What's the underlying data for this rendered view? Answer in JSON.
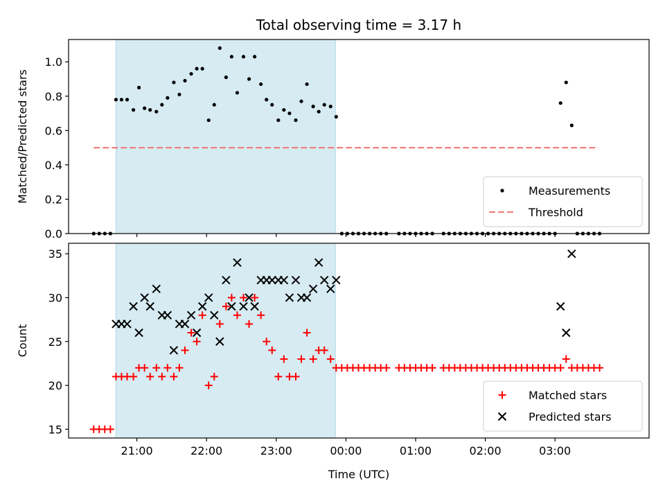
{
  "chart_data": {
    "title": "Total observing time = 3.17 h",
    "xlabel": "Time (UTC)",
    "x_unit": "hours relative to 00:00 UTC",
    "xlim": [
      -3.98,
      4.35
    ],
    "xticks": [
      {
        "value": -3,
        "label": "21:00"
      },
      {
        "value": -2,
        "label": "22:00"
      },
      {
        "value": -1,
        "label": "23:00"
      },
      {
        "value": 0,
        "label": "00:00"
      },
      {
        "value": 1,
        "label": "01:00"
      },
      {
        "value": 2,
        "label": "02:00"
      },
      {
        "value": 3,
        "label": "03:00"
      }
    ],
    "shaded_interval": [
      -3.3,
      -0.15
    ],
    "shade_color": "#add8e6",
    "panels": [
      {
        "type": "scatter",
        "ylabel": "Matched/Predicted stars",
        "ylim": [
          0,
          1.13
        ],
        "yticks": [
          "0.0",
          "0.2",
          "0.4",
          "0.6",
          "0.8",
          "1.0"
        ],
        "legend": "lower right",
        "threshold": {
          "name": "Threshold",
          "y": 0.5,
          "x": [
            -3.62,
            3.62
          ],
          "color": "#f08080"
        },
        "series": [
          {
            "name": "Measurements",
            "color": "#000000",
            "marker": "dot",
            "x": [
              -3.62,
              -3.54,
              -3.46,
              -3.38,
              -3.3,
              -3.22,
              -3.14,
              -3.05,
              -2.97,
              -2.89,
              -2.81,
              -2.72,
              -2.64,
              -2.56,
              -2.47,
              -2.39,
              -2.31,
              -2.22,
              -2.14,
              -2.06,
              -1.97,
              -1.89,
              -1.81,
              -1.72,
              -1.64,
              -1.56,
              -1.47,
              -1.39,
              -1.31,
              -1.22,
              -1.14,
              -1.06,
              -0.97,
              -0.89,
              -0.81,
              -0.72,
              -0.64,
              -0.56,
              -0.47,
              -0.39,
              -0.31,
              -0.22,
              -0.14,
              -0.06,
              0.02,
              0.1,
              0.18,
              0.26,
              0.34,
              0.42,
              0.5,
              0.58,
              0.76,
              0.84,
              0.92,
              1.0,
              1.08,
              1.16,
              1.24,
              1.4,
              1.48,
              1.56,
              1.64,
              1.72,
              1.8,
              1.88,
              1.96,
              2.04,
              2.12,
              2.2,
              2.28,
              2.36,
              2.44,
              2.52,
              2.6,
              2.68,
              2.76,
              2.84,
              2.92,
              3.0,
              3.08,
              3.16,
              3.24,
              3.32,
              3.4,
              3.48,
              3.56,
              3.64
            ],
            "y": [
              0,
              0,
              0,
              0,
              0.78,
              0.78,
              0.78,
              0.72,
              0.85,
              0.73,
              0.72,
              0.71,
              0.75,
              0.79,
              0.88,
              0.81,
              0.89,
              0.93,
              0.96,
              0.96,
              0.66,
              0.75,
              1.08,
              0.91,
              1.03,
              0.82,
              1.03,
              0.9,
              1.03,
              0.87,
              0.78,
              0.75,
              0.66,
              0.72,
              0.7,
              0.66,
              0.77,
              0.87,
              0.74,
              0.71,
              0.75,
              0.74,
              0.68,
              0,
              0,
              0,
              0,
              0,
              0,
              0,
              0,
              0,
              0,
              0,
              0,
              0,
              0,
              0,
              0,
              0,
              0,
              0,
              0,
              0,
              0,
              0,
              0,
              0,
              0,
              0,
              0,
              0,
              0,
              0,
              0,
              0,
              0,
              0,
              0,
              0,
              0.76,
              0.88,
              0.63,
              0,
              0,
              0,
              0,
              0
            ]
          }
        ]
      },
      {
        "type": "scatter",
        "ylabel": "Count",
        "ylim": [
          14,
          36.2
        ],
        "yticks": [
          "15",
          "20",
          "25",
          "30",
          "35"
        ],
        "legend": "lower right",
        "series": [
          {
            "name": "Matched stars",
            "color": "#ff0000",
            "marker": "plus",
            "x": [
              -3.62,
              -3.54,
              -3.46,
              -3.38,
              -3.3,
              -3.22,
              -3.14,
              -3.05,
              -2.97,
              -2.89,
              -2.81,
              -2.72,
              -2.64,
              -2.56,
              -2.47,
              -2.39,
              -2.31,
              -2.22,
              -2.14,
              -2.06,
              -1.97,
              -1.89,
              -1.81,
              -1.72,
              -1.64,
              -1.56,
              -1.47,
              -1.39,
              -1.31,
              -1.22,
              -1.14,
              -1.06,
              -0.97,
              -0.89,
              -0.81,
              -0.72,
              -0.64,
              -0.56,
              -0.47,
              -0.39,
              -0.31,
              -0.22,
              -0.14,
              -0.06,
              0.02,
              0.1,
              0.18,
              0.26,
              0.34,
              0.42,
              0.5,
              0.58,
              0.76,
              0.84,
              0.92,
              1.0,
              1.08,
              1.16,
              1.24,
              1.4,
              1.48,
              1.56,
              1.64,
              1.72,
              1.8,
              1.88,
              1.96,
              2.04,
              2.12,
              2.2,
              2.28,
              2.36,
              2.44,
              2.52,
              2.6,
              2.68,
              2.76,
              2.84,
              2.92,
              3.0,
              3.08,
              3.16,
              3.24,
              3.32,
              3.4,
              3.48,
              3.56,
              3.64
            ],
            "y": [
              15,
              15,
              15,
              15,
              21,
              21,
              21,
              21,
              22,
              22,
              21,
              22,
              21,
              22,
              21,
              22,
              24,
              26,
              25,
              28,
              20,
              21,
              27,
              29,
              30,
              28,
              30,
              27,
              30,
              28,
              25,
              24,
              21,
              23,
              21,
              21,
              23,
              26,
              23,
              24,
              24,
              23,
              22,
              22,
              22,
              22,
              22,
              22,
              22,
              22,
              22,
              22,
              22,
              22,
              22,
              22,
              22,
              22,
              22,
              22,
              22,
              22,
              22,
              22,
              22,
              22,
              22,
              22,
              22,
              22,
              22,
              22,
              22,
              22,
              22,
              22,
              22,
              22,
              22,
              22,
              22,
              23,
              22,
              22,
              22,
              22,
              22,
              22
            ]
          },
          {
            "name": "Predicted stars",
            "color": "#000000",
            "marker": "x",
            "x": [
              -3.3,
              -3.22,
              -3.14,
              -3.05,
              -2.97,
              -2.89,
              -2.81,
              -2.72,
              -2.64,
              -2.56,
              -2.47,
              -2.39,
              -2.31,
              -2.22,
              -2.14,
              -2.06,
              -1.97,
              -1.89,
              -1.81,
              -1.72,
              -1.64,
              -1.56,
              -1.47,
              -1.39,
              -1.31,
              -1.22,
              -1.14,
              -1.06,
              -0.97,
              -0.89,
              -0.81,
              -0.72,
              -0.64,
              -0.56,
              -0.47,
              -0.39,
              -0.31,
              -0.22,
              -0.14,
              3.08,
              3.16,
              3.24
            ],
            "y": [
              27,
              27,
              27,
              29,
              26,
              30,
              29,
              31,
              28,
              28,
              24,
              27,
              27,
              28,
              26,
              29,
              30,
              28,
              25,
              32,
              29,
              34,
              29,
              30,
              29,
              32,
              32,
              32,
              32,
              32,
              30,
              32,
              30,
              30,
              31,
              34,
              32,
              31,
              32,
              29,
              26,
              35
            ]
          }
        ]
      }
    ]
  }
}
